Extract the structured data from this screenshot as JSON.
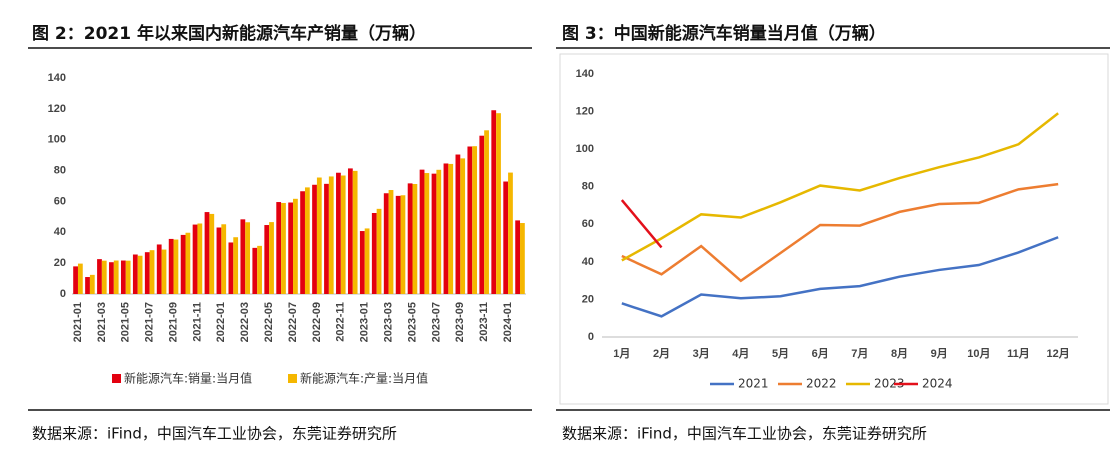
{
  "chart_data": [
    {
      "type": "bar",
      "title": "图 2：2021 年以来国内新能源汽车产销量（万辆）",
      "source": "数据来源：iFind，中国汽车工业协会，东莞证券研究所",
      "categories": [
        "2021-01",
        null,
        "2021-03",
        null,
        "2021-05",
        null,
        "2021-07",
        null,
        "2021-09",
        null,
        "2021-11",
        null,
        "2022-01",
        null,
        "2022-03",
        null,
        "2022-05",
        null,
        "2022-07",
        null,
        "2022-09",
        null,
        "2022-11",
        null,
        "2023-01",
        null,
        "2023-03",
        null,
        "2023-05",
        null,
        "2023-07",
        null,
        "2023-09",
        null,
        "2023-11",
        null,
        "2024-01",
        null
      ],
      "series": [
        {
          "name": "新能源汽车:销量:当月值",
          "color": "#e3000f",
          "values": [
            17.9,
            11.0,
            22.6,
            20.6,
            21.7,
            25.6,
            27.1,
            32.1,
            35.7,
            38.3,
            45.0,
            53.1,
            43.1,
            33.4,
            48.4,
            29.9,
            44.7,
            59.6,
            59.3,
            66.6,
            70.8,
            71.4,
            78.6,
            81.4,
            40.8,
            52.5,
            65.3,
            63.6,
            71.7,
            80.6,
            78.0,
            84.6,
            90.4,
            95.6,
            102.6,
            119.1,
            72.9,
            47.7
          ]
        },
        {
          "name": "新能源汽车:产量:当月值",
          "color": "#f5b700",
          "values": [
            19.7,
            12.4,
            21.6,
            21.7,
            21.6,
            24.8,
            28.4,
            28.8,
            35.3,
            39.7,
            45.7,
            51.9,
            45.2,
            36.8,
            46.5,
            31.2,
            46.6,
            59.0,
            61.7,
            69.1,
            75.5,
            76.2,
            76.8,
            79.8,
            42.5,
            55.2,
            67.4,
            64.0,
            71.3,
            78.4,
            80.5,
            84.3,
            87.9,
            95.8,
            106.1,
            117.2,
            78.7,
            46.0
          ]
        }
      ],
      "ylim": [
        0,
        140
      ],
      "yticks": [
        0,
        20,
        40,
        60,
        80,
        100,
        120,
        140
      ],
      "grid": false
    },
    {
      "type": "line",
      "title": "图 3：中国新能源汽车销量当月值（万辆）",
      "source": "数据来源：iFind，中国汽车工业协会，东莞证券研究所",
      "categories": [
        "1月",
        "2月",
        "3月",
        "4月",
        "5月",
        "6月",
        "7月",
        "8月",
        "9月",
        "10月",
        "11月",
        "12月"
      ],
      "series": [
        {
          "name": "2021",
          "color": "#4472c4",
          "values": [
            17.9,
            11.0,
            22.6,
            20.6,
            21.7,
            25.6,
            27.1,
            32.1,
            35.7,
            38.3,
            45.0,
            53.1
          ]
        },
        {
          "name": "2022",
          "color": "#ed7d31",
          "values": [
            43.1,
            33.4,
            48.4,
            29.9,
            44.7,
            59.6,
            59.3,
            66.6,
            70.8,
            71.4,
            78.6,
            81.4
          ]
        },
        {
          "name": "2023",
          "color": "#e6b800",
          "values": [
            40.8,
            52.5,
            65.3,
            63.6,
            71.7,
            80.6,
            78.0,
            84.6,
            90.4,
            95.6,
            102.6,
            119.1
          ]
        },
        {
          "name": "2024",
          "color": "#e3101b",
          "values": [
            72.9,
            47.7,
            null,
            null,
            null,
            null,
            null,
            null,
            null,
            null,
            null,
            null
          ]
        }
      ],
      "ylim": [
        0,
        140
      ],
      "yticks": [
        0,
        20,
        40,
        60,
        80,
        100,
        120,
        140
      ],
      "grid": false
    }
  ]
}
